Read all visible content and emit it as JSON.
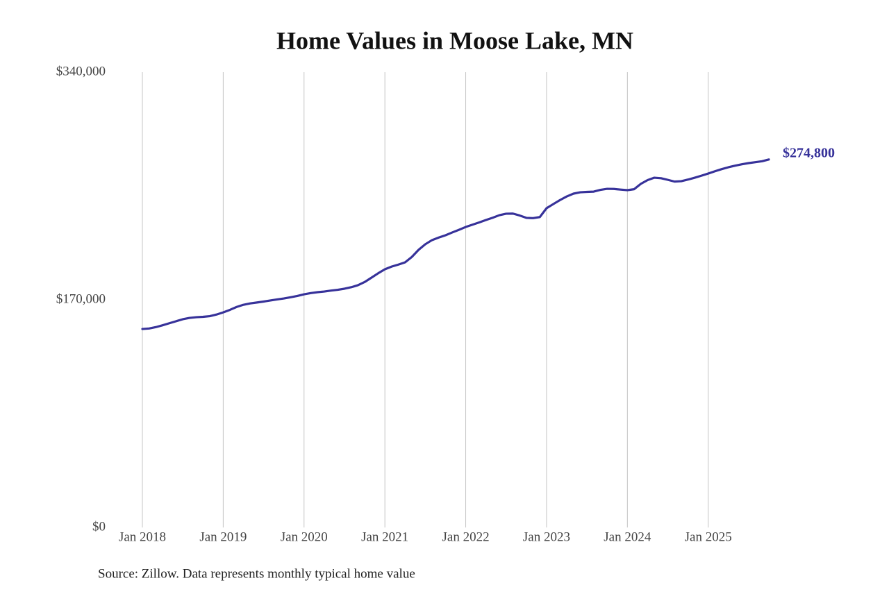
{
  "chart_data": {
    "type": "line",
    "title": "Home Values in Moose Lake, MN",
    "source": "Source: Zillow. Data represents monthly typical home value",
    "color": "#37329a",
    "grid": "x",
    "x": [
      "2018-01",
      "2018-02",
      "2018-03",
      "2018-04",
      "2018-05",
      "2018-06",
      "2018-07",
      "2018-08",
      "2018-09",
      "2018-10",
      "2018-11",
      "2018-12",
      "2019-01",
      "2019-02",
      "2019-03",
      "2019-04",
      "2019-05",
      "2019-06",
      "2019-07",
      "2019-08",
      "2019-09",
      "2019-10",
      "2019-11",
      "2019-12",
      "2020-01",
      "2020-02",
      "2020-03",
      "2020-04",
      "2020-05",
      "2020-06",
      "2020-07",
      "2020-08",
      "2020-09",
      "2020-10",
      "2020-11",
      "2020-12",
      "2021-01",
      "2021-02",
      "2021-03",
      "2021-04",
      "2021-05",
      "2021-06",
      "2021-07",
      "2021-08",
      "2021-09",
      "2021-10",
      "2021-11",
      "2021-12",
      "2022-01",
      "2022-02",
      "2022-03",
      "2022-04",
      "2022-05",
      "2022-06",
      "2022-07",
      "2022-08",
      "2022-09",
      "2022-10",
      "2022-11",
      "2022-12",
      "2023-01",
      "2023-02",
      "2023-03",
      "2023-04",
      "2023-05",
      "2023-06",
      "2023-07",
      "2023-08",
      "2023-09",
      "2023-10",
      "2023-11",
      "2023-12",
      "2024-01",
      "2024-02",
      "2024-03",
      "2024-04",
      "2024-05",
      "2024-06",
      "2024-07",
      "2024-08",
      "2024-09",
      "2024-10",
      "2024-11",
      "2024-12",
      "2025-01",
      "2025-02",
      "2025-03",
      "2025-04",
      "2025-05",
      "2025-06",
      "2025-07",
      "2025-08",
      "2025-09",
      "2025-10"
    ],
    "values": [
      148200,
      148600,
      149600,
      151000,
      152500,
      154000,
      155500,
      156500,
      157000,
      157300,
      157800,
      159000,
      160600,
      162500,
      164700,
      166300,
      167300,
      168000,
      168700,
      169500,
      170300,
      171000,
      171900,
      172900,
      174100,
      175000,
      175700,
      176200,
      176900,
      177500,
      178300,
      179400,
      180900,
      183300,
      186500,
      189800,
      192800,
      194800,
      196300,
      198000,
      202000,
      207300,
      211500,
      214600,
      216500,
      218200,
      220300,
      222300,
      224400,
      226100,
      227800,
      229600,
      231300,
      233200,
      234300,
      234400,
      233000,
      231200,
      231000,
      231800,
      238400,
      241500,
      244500,
      247200,
      249300,
      250300,
      250600,
      250800,
      252100,
      252900,
      252800,
      252300,
      251900,
      252600,
      256600,
      259400,
      261200,
      260800,
      259600,
      258300,
      258600,
      259800,
      261200,
      262700,
      264300,
      266000,
      267600,
      269000,
      270200,
      271200,
      272100,
      272800,
      273500,
      274800
    ],
    "value_labels": [
      null,
      null,
      null,
      null,
      null,
      null,
      null,
      null,
      null,
      null,
      null,
      null,
      null,
      null,
      null,
      null,
      null,
      null,
      null,
      null,
      null,
      null,
      null,
      null,
      null,
      null,
      null,
      null,
      null,
      null,
      null,
      null,
      null,
      null,
      null,
      null,
      null,
      null,
      null,
      null,
      null,
      null,
      null,
      null,
      null,
      null,
      null,
      null,
      null,
      null,
      null,
      null,
      null,
      null,
      null,
      null,
      null,
      null,
      null,
      null,
      null,
      null,
      null,
      null,
      null,
      null,
      null,
      null,
      null,
      null,
      null,
      null,
      null,
      null,
      null,
      null,
      null,
      null,
      null,
      null,
      null,
      null,
      null,
      null,
      null,
      null,
      null,
      null,
      null,
      null,
      null,
      null,
      null,
      "$274,800"
    ],
    "xlim": [
      "2018-01",
      "2025-10"
    ],
    "xticks": [
      {
        "value": "2018-01",
        "label": "Jan 2018"
      },
      {
        "value": "2019-01",
        "label": "Jan 2019"
      },
      {
        "value": "2020-01",
        "label": "Jan 2020"
      },
      {
        "value": "2021-01",
        "label": "Jan 2021"
      },
      {
        "value": "2022-01",
        "label": "Jan 2022"
      },
      {
        "value": "2023-01",
        "label": "Jan 2023"
      },
      {
        "value": "2024-01",
        "label": "Jan 2024"
      },
      {
        "value": "2025-01",
        "label": "Jan 2025"
      }
    ],
    "ylim": [
      0,
      340000
    ],
    "yticks": [
      {
        "value": 0,
        "label": "$0"
      },
      {
        "value": 170000,
        "label": "$170,000"
      },
      {
        "value": 340000,
        "label": "$340,000"
      }
    ]
  }
}
